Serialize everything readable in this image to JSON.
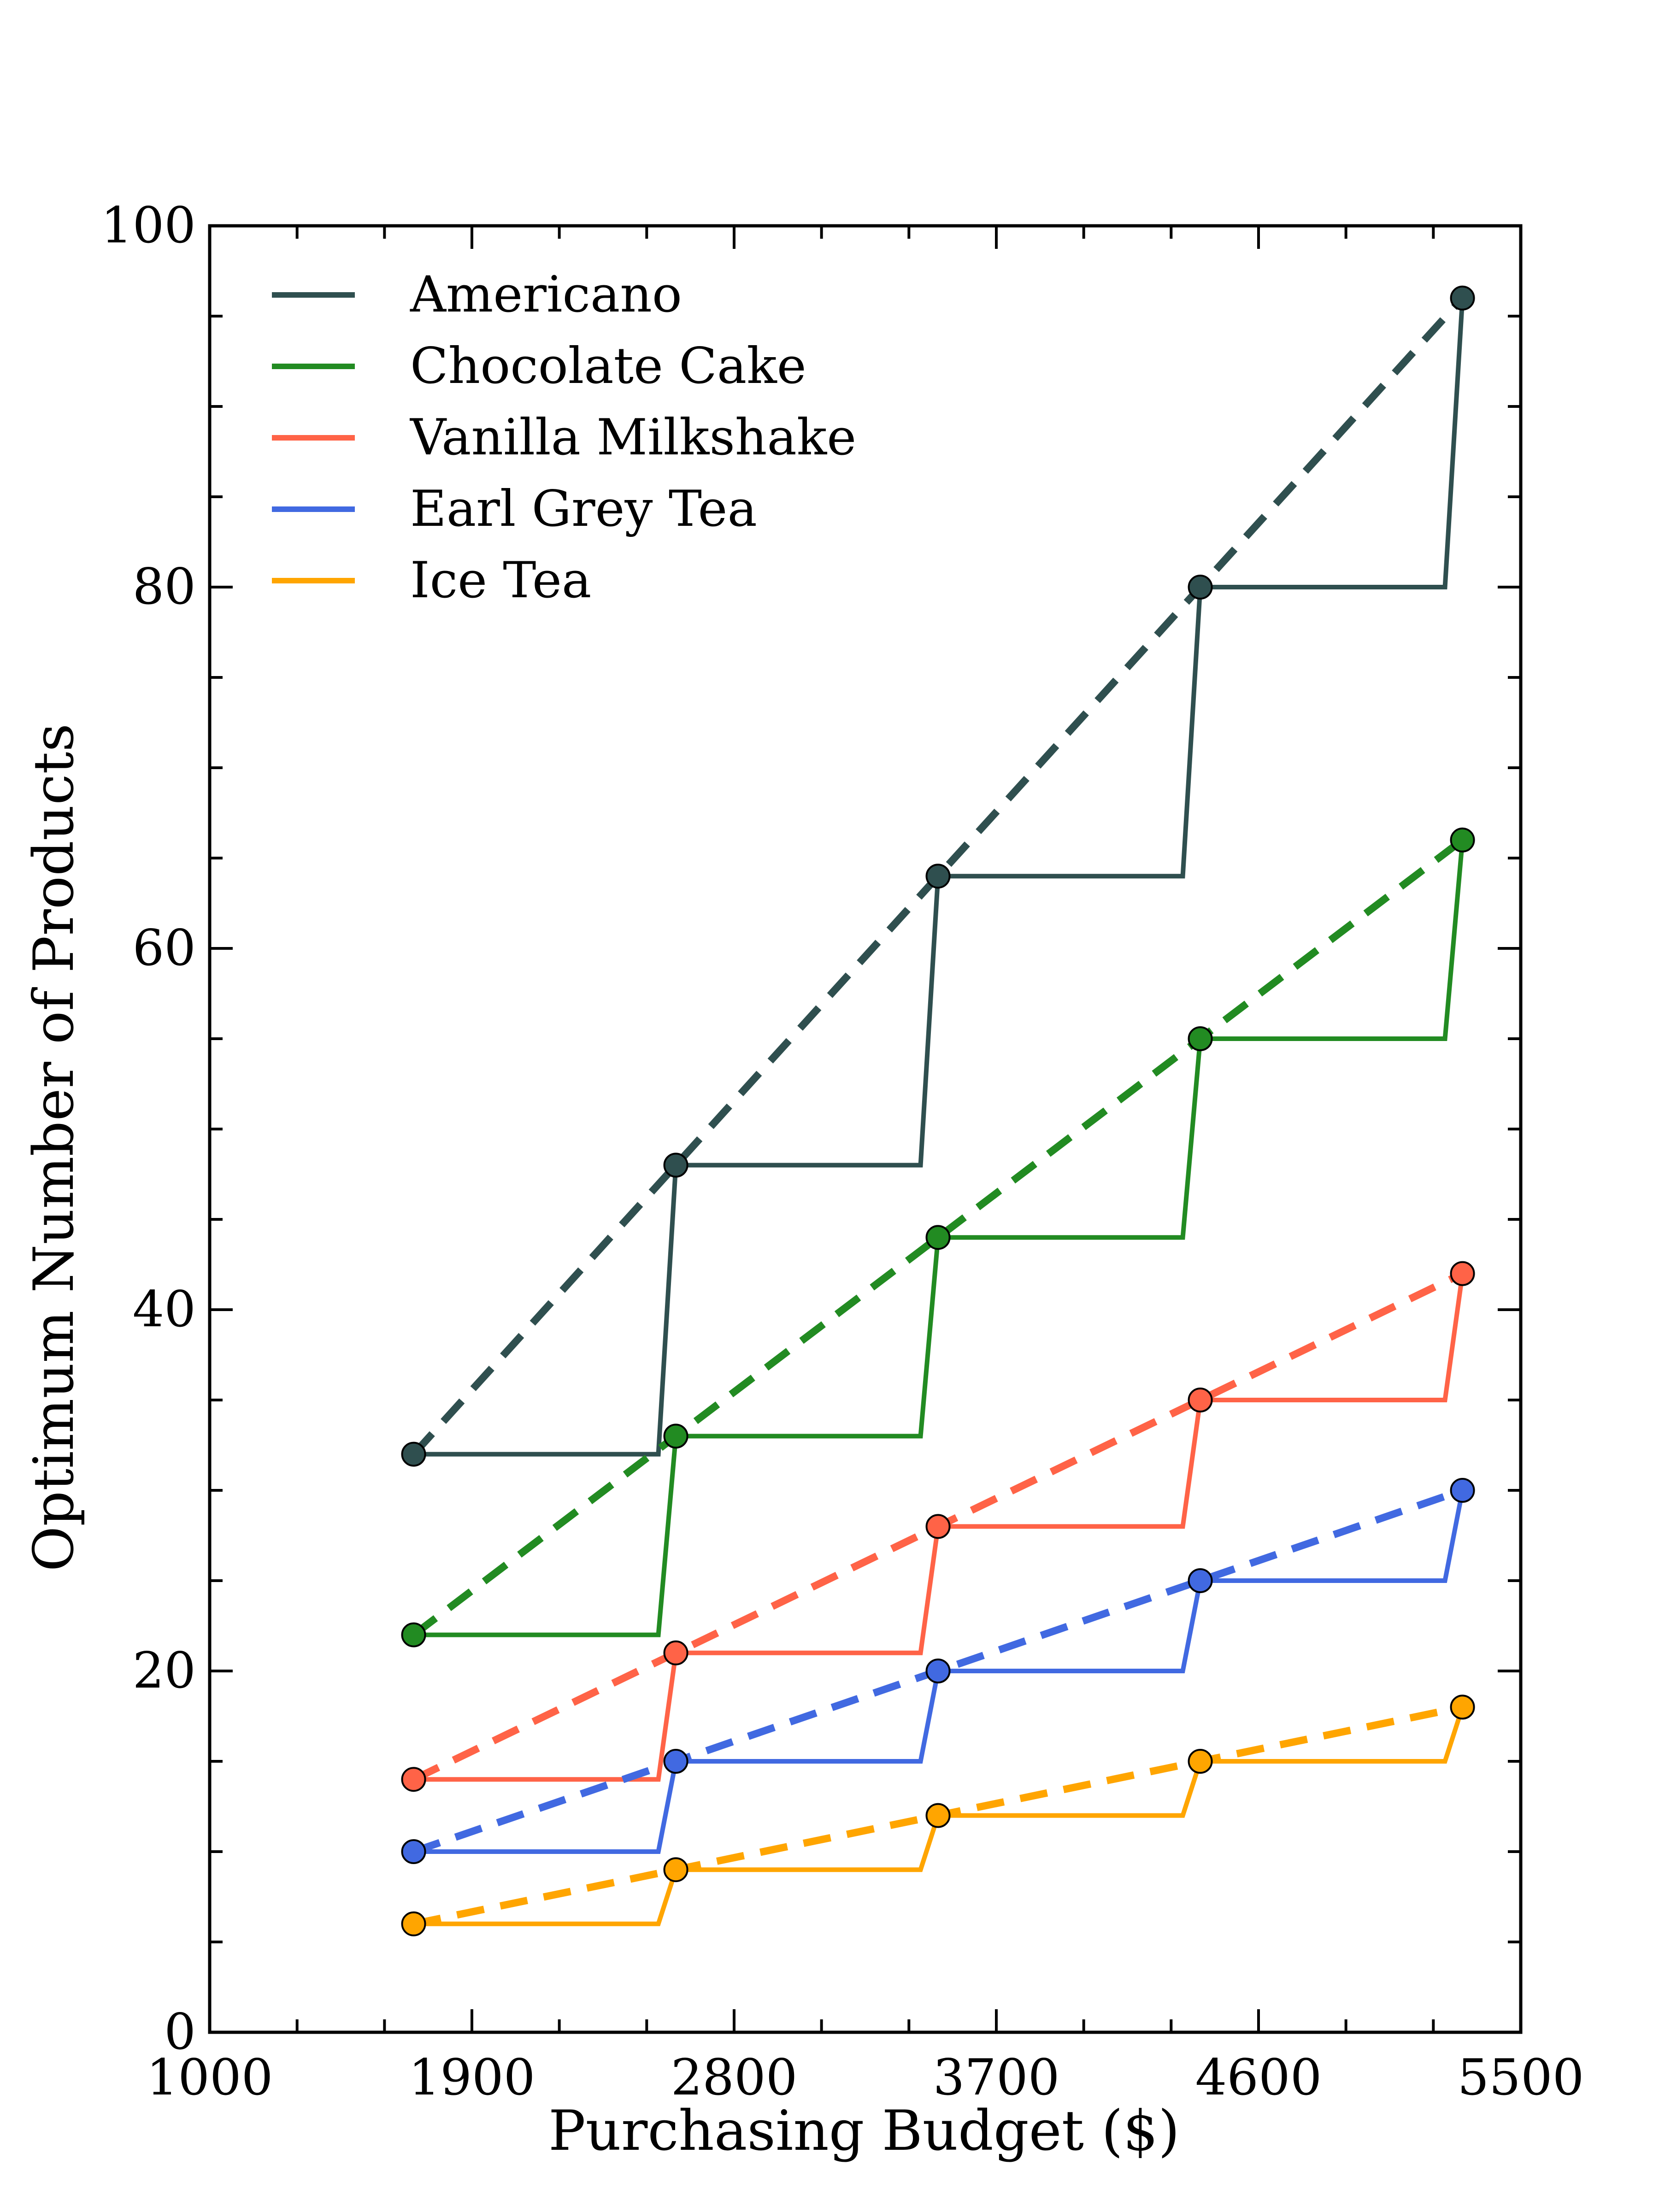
{
  "chart_data": {
    "type": "line",
    "xlabel": "Purchasing Budget ($)",
    "ylabel": "Optimum Number of Products",
    "xlim": [
      1000,
      5500
    ],
    "ylim": [
      0,
      100
    ],
    "x_ticks": [
      1000,
      1900,
      2800,
      3700,
      4600,
      5500
    ],
    "y_ticks": [
      0,
      20,
      40,
      60,
      80,
      100
    ],
    "x_tick_labels": [
      "1000",
      "1900",
      "2800",
      "3700",
      "4600",
      "5500"
    ],
    "y_tick_labels": [
      "0",
      "20",
      "40",
      "60",
      "80",
      "100"
    ],
    "x_minor_step": 300,
    "y_minor_step": 5,
    "legend_position": "top-left",
    "grid": false,
    "budgets": [
      1700,
      2600,
      3500,
      4400,
      5300
    ],
    "series": [
      {
        "name": "Americano",
        "color": "#2F4F4F",
        "values": [
          32,
          48,
          64,
          80,
          96
        ]
      },
      {
        "name": "Chocolate Cake",
        "color": "#228B22",
        "values": [
          22,
          33,
          44,
          55,
          66
        ]
      },
      {
        "name": "Vanilla Milkshake",
        "color": "#FF6347",
        "values": [
          14,
          21,
          28,
          35,
          42
        ]
      },
      {
        "name": "Earl Grey Tea",
        "color": "#4169E1",
        "values": [
          10,
          15,
          20,
          25,
          30
        ]
      },
      {
        "name": "Ice Tea",
        "color": "#FFA500",
        "values": [
          6,
          9,
          12,
          15,
          18
        ]
      }
    ]
  }
}
